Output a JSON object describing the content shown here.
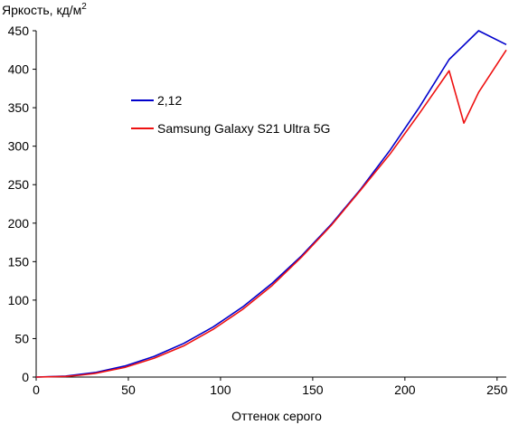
{
  "chart_data": {
    "type": "line",
    "title": "",
    "ylabel": "Яркость, кд/м",
    "ylabel_superscript": "2",
    "xlabel": "Оттенок серого",
    "xlim": [
      0,
      255
    ],
    "ylim": [
      0,
      450
    ],
    "x_ticks": [
      0,
      50,
      100,
      150,
      200,
      250
    ],
    "y_ticks": [
      0,
      50,
      100,
      150,
      200,
      250,
      300,
      350,
      400,
      450
    ],
    "grid": false,
    "legend_position": "upper-left",
    "series": [
      {
        "name": "2,12",
        "color": "#0000cc",
        "x": [
          0,
          16,
          32,
          48,
          64,
          80,
          96,
          112,
          128,
          144,
          160,
          176,
          192,
          208,
          224,
          240,
          255
        ],
        "y": [
          0,
          1.3,
          5.9,
          14.3,
          26.9,
          43.7,
          65.1,
          91.1,
          121.9,
          157.6,
          198.3,
          244.1,
          295.0,
          351.2,
          412.7,
          479.5,
          432
        ]
      },
      {
        "name": "Samsung Galaxy S21 Ultra 5G",
        "color": "#ee1111",
        "x": [
          0,
          16,
          24,
          32,
          48,
          64,
          80,
          96,
          112,
          128,
          144,
          160,
          176,
          192,
          208,
          224,
          232,
          240,
          255
        ],
        "y": [
          0,
          0.8,
          2.5,
          4.8,
          12.5,
          24.5,
          40.5,
          62,
          88,
          119,
          156,
          197,
          243,
          290,
          343,
          398,
          330,
          370,
          425
        ]
      }
    ]
  }
}
